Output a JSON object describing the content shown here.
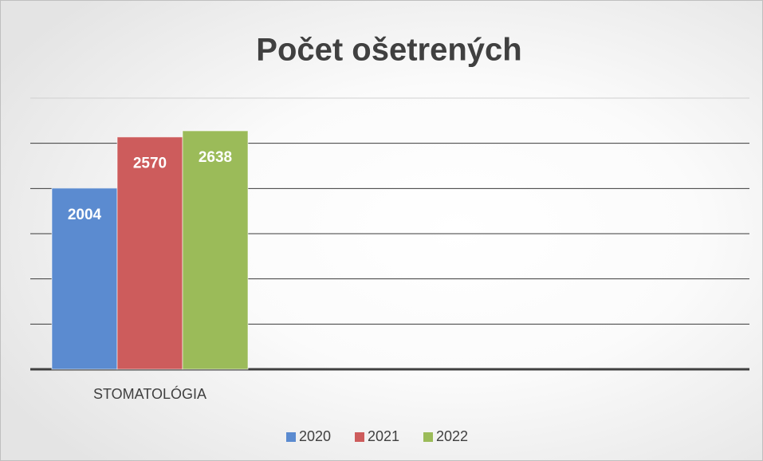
{
  "chart_data": {
    "type": "bar",
    "title": "Počet ošetrených",
    "categories": [
      "STOMATOLÓGIA"
    ],
    "series": [
      {
        "name": "2020",
        "color": "#5b8bd0",
        "values": [
          2004
        ]
      },
      {
        "name": "2021",
        "color": "#cd5c5c",
        "values": [
          2570
        ]
      },
      {
        "name": "2022",
        "color": "#9bbb59",
        "values": [
          2638
        ]
      }
    ],
    "ylim": [
      0,
      3000
    ],
    "yticks": [
      0,
      500,
      1000,
      1500,
      2000,
      2500,
      3000
    ],
    "grid": true,
    "legend": "bottom"
  }
}
